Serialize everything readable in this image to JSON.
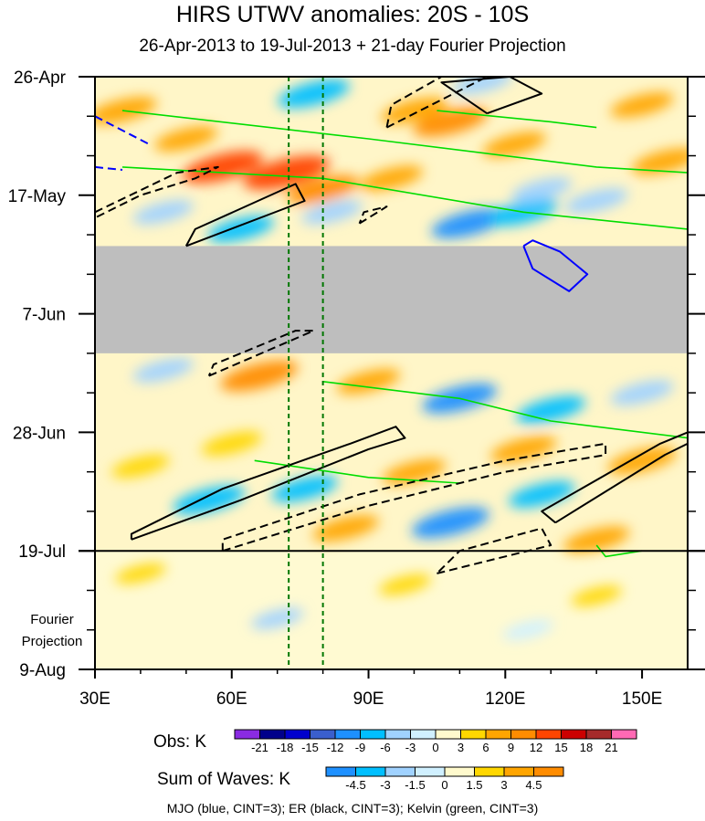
{
  "title": "HIRS UTWV anomalies: 20S - 10S",
  "subtitle": "26-Apr-2013 to 19-Jul-2013 + 21-day Fourier Projection",
  "fourier_label": [
    "Fourier",
    "Projection"
  ],
  "footer": "MJO (blue, CINT=3); ER (black, CINT=3); Kelvin (green, CINT=3)",
  "colors": {
    "missing": "#bebebe",
    "mjo": "#0000ff",
    "er": "#000000",
    "kelvin": "#00dd00",
    "vertical_lines": "#007700"
  },
  "chart_data": {
    "type": "heatmap",
    "x_axis": {
      "ticks": [
        "30E",
        "60E",
        "90E",
        "120E",
        "150E"
      ],
      "tick_values": [
        30,
        60,
        90,
        120,
        150
      ],
      "range": [
        30,
        160
      ]
    },
    "y_axis": {
      "ticks": [
        "26-Apr",
        "17-May",
        "7-Jun",
        "28-Jun",
        "19-Jul",
        "9-Aug"
      ],
      "tick_days": [
        0,
        21,
        42,
        63,
        84,
        105
      ],
      "range_days": [
        0,
        105
      ],
      "reversed": true
    },
    "projection_start_day": 84,
    "missing_days": [
      30,
      49
    ],
    "vertical_lines_lon": [
      72.5,
      80
    ],
    "obs_colorbar": {
      "label": "Obs: K",
      "levels": [
        "-21",
        "-18",
        "-15",
        "-12",
        "-9",
        "-6",
        "-3",
        "0",
        "3",
        "6",
        "9",
        "12",
        "15",
        "18",
        "21"
      ],
      "colors": [
        "#8a2be2",
        "#00008b",
        "#0000cd",
        "#3a5fcd",
        "#1e90ff",
        "#00bfff",
        "#a0d2ff",
        "#d0f0ff",
        "#fffacd",
        "#ffd700",
        "#ffa500",
        "#ff8c00",
        "#ff4500",
        "#cc0000",
        "#a52a2a",
        "#ff69b4"
      ]
    },
    "waves_colorbar": {
      "label": "Sum of Waves: K",
      "levels": [
        "-4.5",
        "-3",
        "-1.5",
        "0",
        "1.5",
        "3",
        "4.5"
      ],
      "colors": [
        "#1e90ff",
        "#00bfff",
        "#a0d2ff",
        "#d0f0ff",
        "#fffacd",
        "#ffd700",
        "#ffa500",
        "#ff8c00"
      ]
    },
    "patches": [
      {
        "lon": 36,
        "day": 6,
        "v": 8
      },
      {
        "lon": 50,
        "day": 11,
        "v": 6
      },
      {
        "lon": 58,
        "day": 16,
        "v": 12
      },
      {
        "lon": 72,
        "day": 17,
        "v": 14
      },
      {
        "lon": 80,
        "day": 20,
        "v": 9
      },
      {
        "lon": 95,
        "day": 18,
        "v": 6
      },
      {
        "lon": 108,
        "day": 8,
        "v": 10
      },
      {
        "lon": 100,
        "day": 6,
        "v": 7
      },
      {
        "lon": 122,
        "day": 12,
        "v": 6
      },
      {
        "lon": 150,
        "day": 5,
        "v": 6
      },
      {
        "lon": 155,
        "day": 15,
        "v": 7
      },
      {
        "lon": 62,
        "day": 27,
        "v": -7
      },
      {
        "lon": 82,
        "day": 24,
        "v": -5
      },
      {
        "lon": 112,
        "day": 26,
        "v": -10
      },
      {
        "lon": 124,
        "day": 24,
        "v": -8
      },
      {
        "lon": 140,
        "day": 22,
        "v": -6
      },
      {
        "lon": 128,
        "day": 20,
        "v": -5
      },
      {
        "lon": 45,
        "day": 24,
        "v": -5
      },
      {
        "lon": 78,
        "day": 3,
        "v": -9
      },
      {
        "lon": 115,
        "day": 1,
        "v": -5
      },
      {
        "lon": 45,
        "day": 52,
        "v": -5
      },
      {
        "lon": 66,
        "day": 53,
        "v": 11
      },
      {
        "lon": 90,
        "day": 54,
        "v": 6
      },
      {
        "lon": 110,
        "day": 57,
        "v": -10
      },
      {
        "lon": 130,
        "day": 59,
        "v": -8
      },
      {
        "lon": 150,
        "day": 56,
        "v": -6
      },
      {
        "lon": 60,
        "day": 65,
        "v": 5
      },
      {
        "lon": 100,
        "day": 70,
        "v": 6
      },
      {
        "lon": 124,
        "day": 66,
        "v": 7
      },
      {
        "lon": 150,
        "day": 68,
        "v": 8
      },
      {
        "lon": 55,
        "day": 75,
        "v": -9
      },
      {
        "lon": 76,
        "day": 73,
        "v": -7
      },
      {
        "lon": 85,
        "day": 80,
        "v": 7
      },
      {
        "lon": 108,
        "day": 79,
        "v": -11
      },
      {
        "lon": 128,
        "day": 74,
        "v": -7
      },
      {
        "lon": 140,
        "day": 82,
        "v": 7
      },
      {
        "lon": 40,
        "day": 69,
        "v": 4
      },
      {
        "lon": 70,
        "day": 96,
        "v": -2
      },
      {
        "lon": 125,
        "day": 98,
        "v": -1.5
      },
      {
        "lon": 140,
        "day": 92,
        "v": 1.5
      },
      {
        "lon": 98,
        "day": 90,
        "v": 2
      },
      {
        "lon": 40,
        "day": 88,
        "v": 1.5
      }
    ],
    "contours": {
      "er_solid": [
        [
          [
            116,
            6.5
          ],
          [
            128,
            3
          ],
          [
            121,
            0
          ],
          [
            106,
            1
          ],
          [
            116,
            6.5
          ]
        ],
        [
          [
            50,
            30
          ],
          [
            76,
            22
          ],
          [
            74,
            19
          ],
          [
            52,
            27
          ],
          [
            50,
            30
          ]
        ],
        [
          [
            38,
            82
          ],
          [
            62,
            75
          ],
          [
            90,
            66
          ],
          [
            98,
            64
          ],
          [
            96,
            62
          ],
          [
            86,
            65
          ],
          [
            58,
            73
          ],
          [
            38,
            81
          ],
          [
            38,
            82
          ]
        ],
        [
          [
            131,
            79
          ],
          [
            155,
            67
          ],
          [
            160,
            65
          ],
          [
            160,
            63
          ],
          [
            154,
            65
          ],
          [
            128,
            77
          ],
          [
            131,
            79
          ]
        ]
      ],
      "er_dashed": [
        [
          [
            30,
            24
          ],
          [
            48,
            17
          ],
          [
            57,
            16
          ],
          [
            52,
            18
          ],
          [
            40,
            21
          ],
          [
            30,
            25
          ]
        ],
        [
          [
            94,
            9
          ],
          [
            116,
            0
          ],
          [
            106,
            0
          ],
          [
            95,
            5
          ],
          [
            94,
            9
          ]
        ],
        [
          [
            88,
            26
          ],
          [
            94,
            23
          ],
          [
            89,
            24
          ],
          [
            88,
            26
          ]
        ],
        [
          [
            55,
            53
          ],
          [
            78,
            45
          ],
          [
            74,
            45
          ],
          [
            56,
            51
          ],
          [
            55,
            53
          ]
        ],
        [
          [
            58,
            84
          ],
          [
            90,
            76
          ],
          [
            120,
            70
          ],
          [
            142,
            67
          ],
          [
            142,
            65
          ],
          [
            120,
            68
          ],
          [
            88,
            74
          ],
          [
            58,
            82
          ],
          [
            58,
            84
          ]
        ],
        [
          [
            105,
            88
          ],
          [
            130,
            83
          ],
          [
            128,
            80
          ],
          [
            110,
            84
          ],
          [
            105,
            88
          ]
        ]
      ],
      "mjo_solid": [
        [
          [
            124,
            30
          ],
          [
            126,
            34
          ],
          [
            134,
            38
          ],
          [
            138,
            35
          ],
          [
            132,
            31
          ],
          [
            126,
            29
          ],
          [
            124,
            30
          ]
        ]
      ],
      "mjo_dashed": [
        [
          [
            30,
            7
          ],
          [
            42,
            12
          ]
        ],
        [
          [
            30,
            16
          ],
          [
            36,
            16.5
          ]
        ]
      ],
      "kelvin": [
        [
          [
            36,
            6
          ],
          [
            90,
            11
          ],
          [
            140,
            16
          ],
          [
            160,
            17
          ]
        ],
        [
          [
            36,
            16
          ],
          [
            80,
            18
          ],
          [
            124,
            24
          ],
          [
            160,
            27
          ]
        ],
        [
          [
            80,
            54
          ],
          [
            110,
            57
          ],
          [
            130,
            61
          ],
          [
            160,
            64
          ]
        ],
        [
          [
            65,
            68
          ],
          [
            90,
            71
          ],
          [
            110,
            72
          ]
        ],
        [
          [
            105,
            6
          ],
          [
            130,
            8
          ],
          [
            140,
            9
          ]
        ],
        [
          [
            140,
            83
          ],
          [
            142,
            85
          ],
          [
            150,
            84
          ]
        ]
      ]
    }
  }
}
